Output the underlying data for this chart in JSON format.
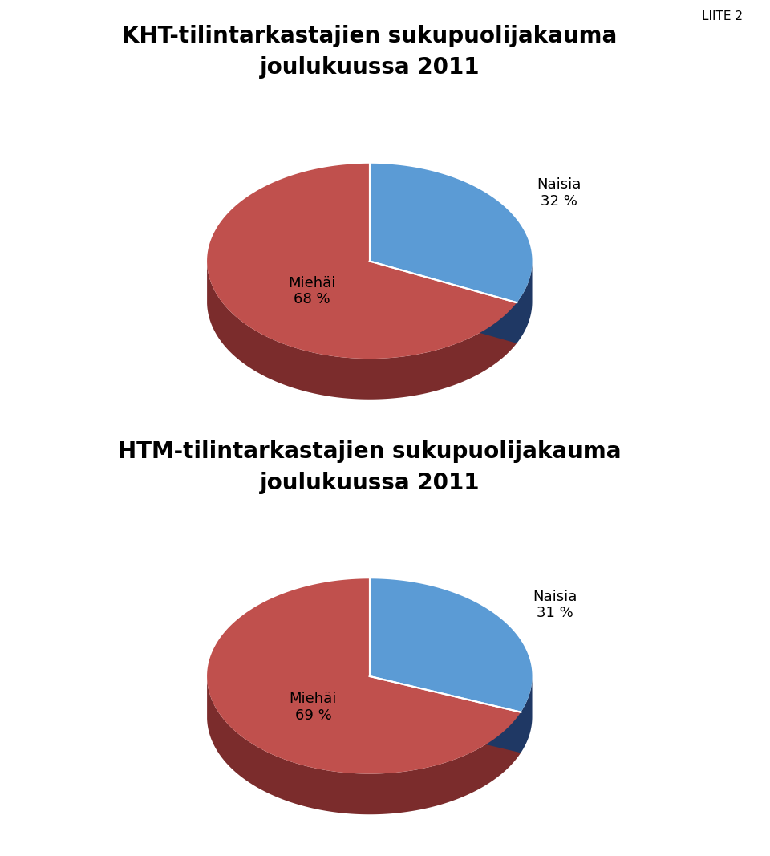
{
  "chart1_title": "KHT-tilintarkastajien sukupuolijakauma\njoulukuussa 2011",
  "chart2_title": "HTM-tilintarkastajien sukupuolijakauma\njoulukuussa 2011",
  "chart1_values": [
    32,
    68
  ],
  "chart2_values": [
    31,
    69
  ],
  "labels": [
    "Naisia",
    "Miehäi"
  ],
  "chart1_percents": [
    "32 %",
    "68 %"
  ],
  "chart2_percents": [
    "31 %",
    "69 %"
  ],
  "color_naisia": "#5B9BD5",
  "color_miehia": "#C0504D",
  "color_naisia_dark": "#1F3864",
  "color_miehia_dark": "#7B2C2C",
  "background": "#FFFFFF",
  "border_color": "#999999",
  "title_fontsize": 20,
  "label_fontsize": 13,
  "liite_text": "LIITE 2"
}
